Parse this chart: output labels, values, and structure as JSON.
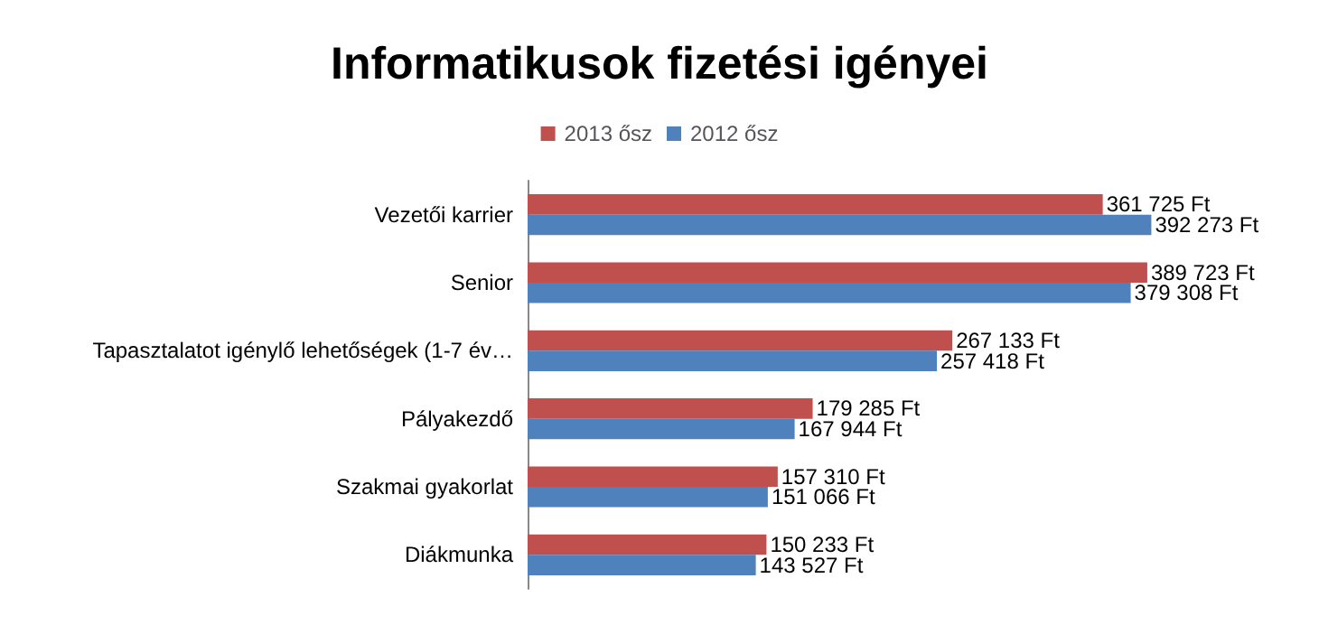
{
  "chart_data": {
    "type": "bar",
    "orientation": "horizontal",
    "title": "Informatikusok fizetési igényei",
    "legend": "top",
    "categories": [
      "Vezetői karrier",
      "Senior",
      "Tapasztalatot igénylő lehetőségek (1-7 év…",
      "Pályakezdő",
      "Szakmai gyakorlat",
      "Diákmunka"
    ],
    "series": [
      {
        "name": "2013 ősz",
        "color": "#c0504d",
        "values": [
          361725,
          389723,
          267133,
          179285,
          157310,
          150233
        ],
        "value_labels": [
          "361 725 Ft",
          "389 723 Ft",
          "267 133 Ft",
          "179 285 Ft",
          "157 310 Ft",
          "150 233 Ft"
        ]
      },
      {
        "name": "2012 ősz",
        "color": "#4f81bd",
        "values": [
          392273,
          379308,
          257418,
          167944,
          151066,
          143527
        ],
        "value_labels": [
          "392 273 Ft",
          "379 308 Ft",
          "257 418 Ft",
          "167 944 Ft",
          "151 066 Ft",
          "143 527 Ft"
        ]
      }
    ]
  }
}
